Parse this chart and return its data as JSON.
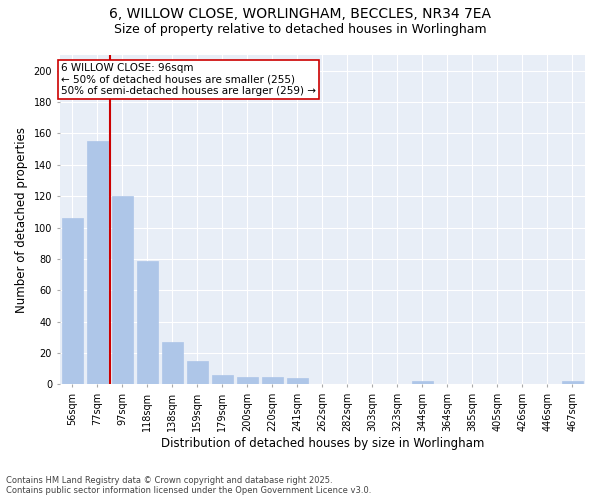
{
  "title_line1": "6, WILLOW CLOSE, WORLINGHAM, BECCLES, NR34 7EA",
  "title_line2": "Size of property relative to detached houses in Worlingham",
  "xlabel": "Distribution of detached houses by size in Worlingham",
  "ylabel": "Number of detached properties",
  "categories": [
    "56sqm",
    "77sqm",
    "97sqm",
    "118sqm",
    "138sqm",
    "159sqm",
    "179sqm",
    "200sqm",
    "220sqm",
    "241sqm",
    "262sqm",
    "282sqm",
    "303sqm",
    "323sqm",
    "344sqm",
    "364sqm",
    "385sqm",
    "405sqm",
    "426sqm",
    "446sqm",
    "467sqm"
  ],
  "values": [
    106,
    155,
    120,
    79,
    27,
    15,
    6,
    5,
    5,
    4,
    0,
    0,
    0,
    0,
    2,
    0,
    0,
    0,
    0,
    0,
    2
  ],
  "bar_color": "#aec6e8",
  "bar_edgecolor": "#aec6e8",
  "vline_color": "#cc0000",
  "annotation_text": "6 WILLOW CLOSE: 96sqm\n← 50% of detached houses are smaller (255)\n50% of semi-detached houses are larger (259) →",
  "annotation_bbox_edgecolor": "#cc0000",
  "annotation_bbox_facecolor": "white",
  "ylim": [
    0,
    210
  ],
  "yticks": [
    0,
    20,
    40,
    60,
    80,
    100,
    120,
    140,
    160,
    180,
    200
  ],
  "background_color": "#e8eef7",
  "grid_color": "white",
  "footer_line1": "Contains HM Land Registry data © Crown copyright and database right 2025.",
  "footer_line2": "Contains public sector information licensed under the Open Government Licence v3.0.",
  "title_fontsize": 10,
  "subtitle_fontsize": 9,
  "tick_fontsize": 7,
  "label_fontsize": 8.5,
  "annotation_fontsize": 7.5
}
